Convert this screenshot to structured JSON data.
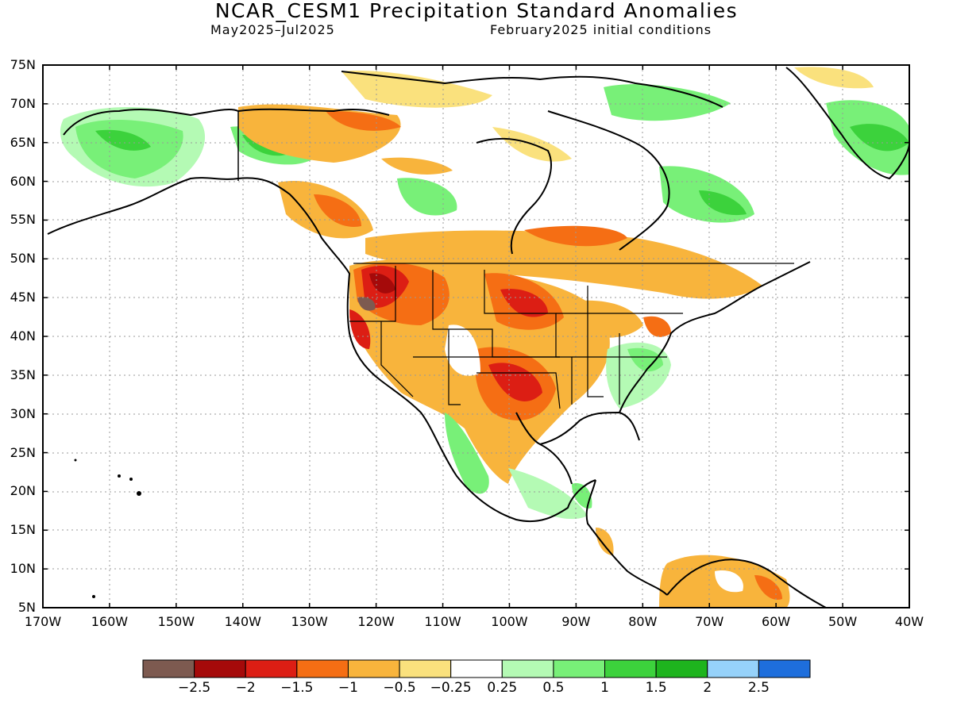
{
  "title": "NCAR_CESM1 Precipitation Standard Anomalies",
  "subtitle_left": "May2025–Jul2025",
  "subtitle_right": "February2025 initial conditions",
  "lat_labels": [
    "75N",
    "70N",
    "65N",
    "60N",
    "55N",
    "50N",
    "45N",
    "40N",
    "35N",
    "30N",
    "25N",
    "20N",
    "15N",
    "10N",
    "5N"
  ],
  "lon_labels": [
    "170W",
    "160W",
    "150W",
    "140W",
    "130W",
    "120W",
    "110W",
    "100W",
    "90W",
    "80W",
    "70W",
    "60W",
    "50W",
    "40W"
  ],
  "colorbar": {
    "colors": [
      "#7d5a50",
      "#a50a0a",
      "#dc1e14",
      "#f56e14",
      "#f8b43c",
      "#fae17d",
      "#ffffff",
      "#b4fab4",
      "#78f078",
      "#3cd23c",
      "#1eb41e",
      "#96d2fa",
      "#1e6edc"
    ],
    "labels": [
      "−2.5",
      "−2",
      "−1.5",
      "−1",
      "−0.5",
      "−0.25",
      "0.25",
      "0.5",
      "1",
      "1.5",
      "2",
      "2.5"
    ]
  }
}
